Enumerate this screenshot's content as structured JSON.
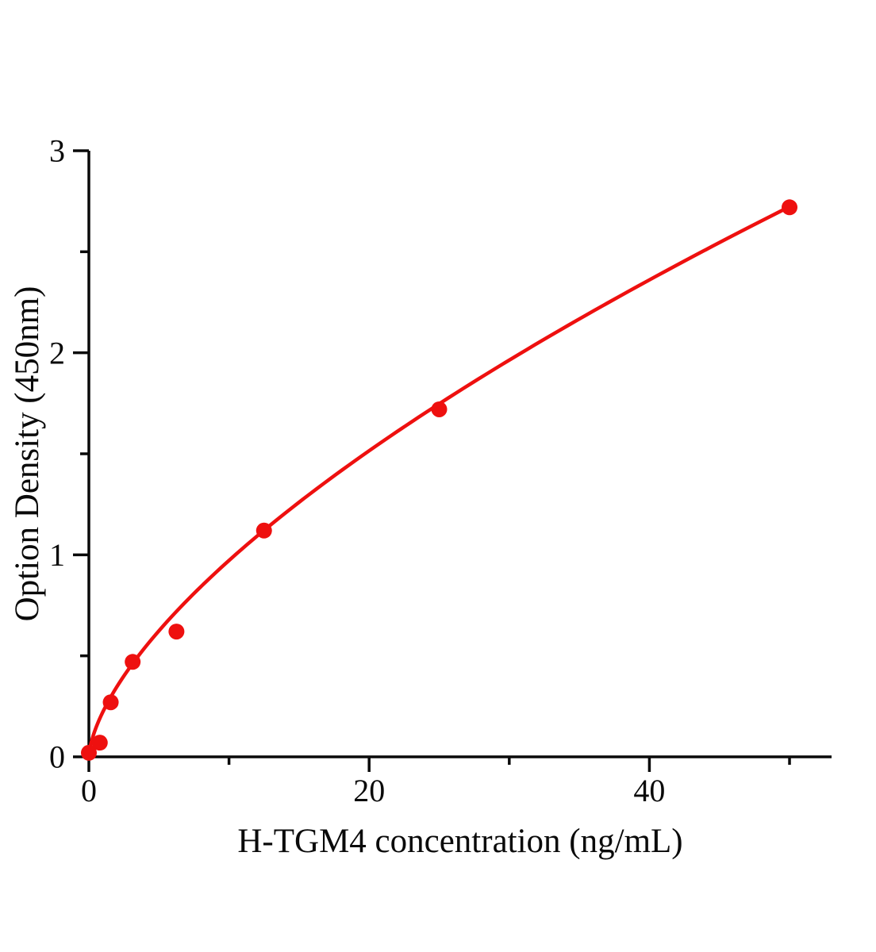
{
  "chart_data": {
    "type": "scatter",
    "title": "",
    "xlabel": "H-TGM4 concentration (ng/mL)",
    "ylabel": "Option Density (450nm)",
    "x": [
      0,
      0.78,
      1.56,
      3.125,
      6.25,
      12.5,
      25,
      50
    ],
    "y": [
      0.02,
      0.07,
      0.27,
      0.47,
      0.62,
      1.12,
      1.72,
      2.72
    ],
    "xlim": [
      0,
      53
    ],
    "ylim": [
      0,
      3
    ],
    "x_ticks_major": [
      0,
      20,
      40
    ],
    "x_ticks_minor": [
      10,
      30,
      50
    ],
    "y_ticks_major": [
      0,
      1,
      2,
      3
    ],
    "y_ticks_minor": [
      0.5,
      1.5,
      2.5
    ],
    "curve_fit": {
      "type": "power",
      "a": 0.2227,
      "b": 0.64,
      "x_min": 0,
      "x_max": 50
    },
    "marker_radius": 10,
    "grid": false,
    "legend": null,
    "colors": {
      "curve": "#ee100f",
      "marker": "#ee100f",
      "axis": "#0a0a0a",
      "text": "#0a0a0a",
      "background": "#ffffff"
    }
  }
}
